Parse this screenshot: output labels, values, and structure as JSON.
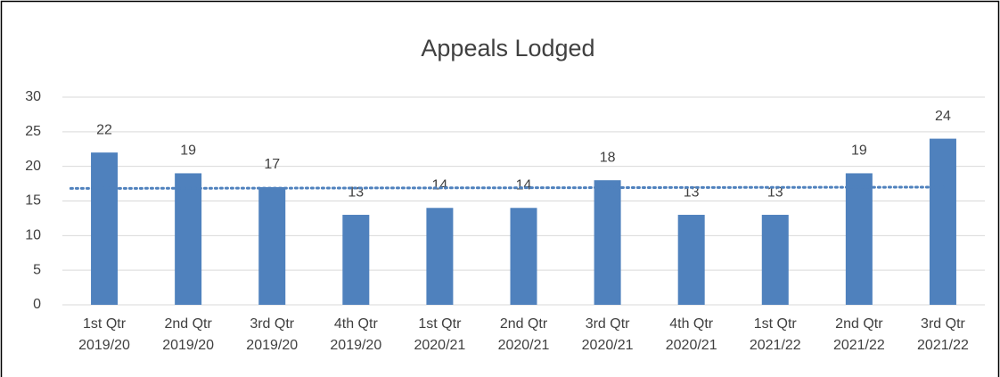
{
  "chart_data": {
    "type": "bar",
    "title": "Appeals Lodged",
    "categories": [
      "1st Qtr 2019/20",
      "2nd Qtr 2019/20",
      "3rd Qtr 2019/20",
      "4th Qtr 2019/20",
      "1st Qtr 2020/21",
      "2nd Qtr 2020/21",
      "3rd Qtr 2020/21",
      "4th Qtr 2020/21",
      "1st Qtr 2021/22",
      "2nd Qtr 2021/22",
      "3rd Qtr 2021/22"
    ],
    "values": [
      22,
      19,
      17,
      13,
      14,
      14,
      18,
      13,
      13,
      19,
      24
    ],
    "color": "#4f81bd",
    "ylim": [
      0,
      30
    ],
    "yticks": [
      0,
      5,
      10,
      15,
      20,
      25,
      30
    ],
    "grid": true,
    "trendline": "linear"
  }
}
